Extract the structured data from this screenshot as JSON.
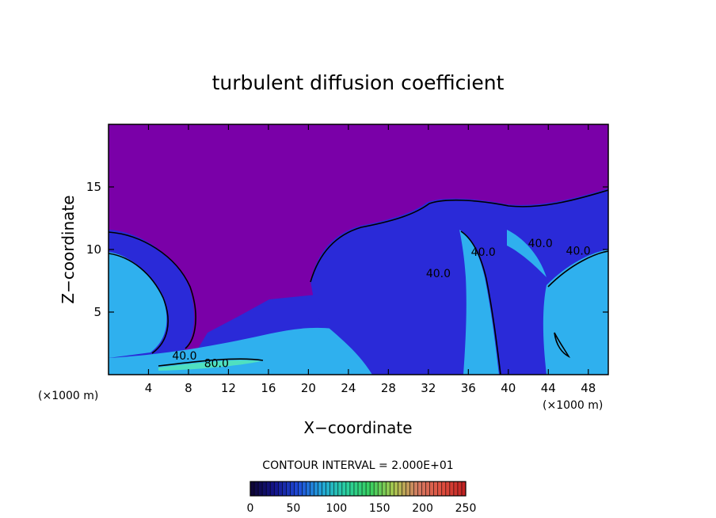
{
  "chart_data": {
    "type": "heatmap",
    "title": "turbulent diffusion coefficient",
    "xlabel": "X−coordinate",
    "ylabel": "Z−coordinate",
    "x_unit_label": "(×1000 m)",
    "y_unit_label": "(×1000 m)",
    "xlim": [
      0,
      50
    ],
    "ylim": [
      0,
      20
    ],
    "x_ticks": [
      4,
      8,
      12,
      16,
      20,
      24,
      28,
      32,
      36,
      40,
      44,
      48
    ],
    "y_ticks": [
      5,
      10,
      15
    ],
    "contour_interval_text": "CONTOUR INTERVAL = 2.000E+01",
    "contour_labels": [
      {
        "text": "40.0",
        "x": 7.6,
        "y": 1.2
      },
      {
        "text": "80.0",
        "x": 10.8,
        "y": 0.6
      },
      {
        "text": "40.0",
        "x": 33.0,
        "y": 7.8
      },
      {
        "text": "40.0",
        "x": 37.5,
        "y": 9.5
      },
      {
        "text": "40.0",
        "x": 43.2,
        "y": 10.2
      },
      {
        "text": "40.0",
        "x": 47.0,
        "y": 9.6
      }
    ],
    "colorbar": {
      "min": 0,
      "max": 250,
      "ticks": [
        0,
        50,
        100,
        150,
        200,
        250
      ],
      "colors": [
        "#0d0530",
        "#14148a",
        "#1f4ad8",
        "#22a6d8",
        "#2ad0a0",
        "#37d060",
        "#a9c64f",
        "#d47a62",
        "#e05040",
        "#c02020"
      ]
    },
    "colors": {
      "background_field": "#7a00a8",
      "low_value_region": "#2a2ad8",
      "mid_value_region": "#2fb0ee",
      "high_value_region": "#4fe0c0"
    }
  }
}
